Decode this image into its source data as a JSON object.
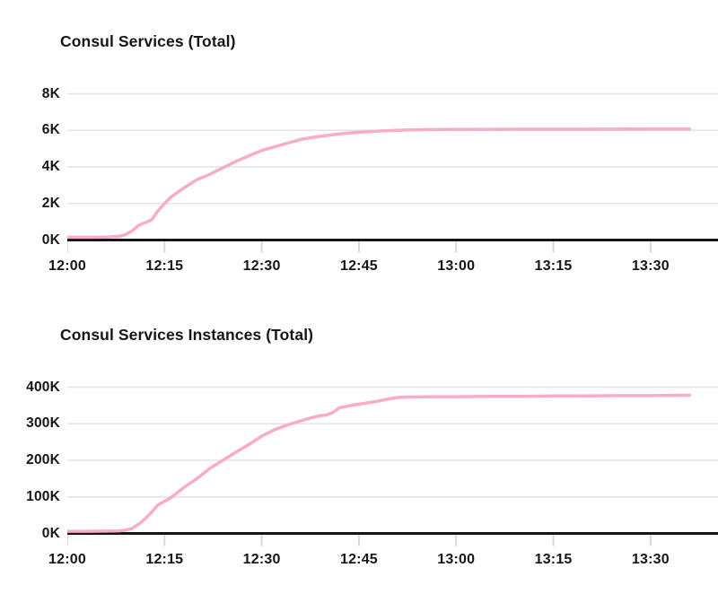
{
  "charts_shared": {
    "accent_color": "#F8ABCB",
    "grid_color": "#E3E3E3",
    "axis_color": "#151515",
    "tick_color": "#D9D9D9",
    "text_color": "#161616",
    "background": "#FFFFFF"
  },
  "chart_data": [
    {
      "type": "line",
      "title": "Consul Services (Total)",
      "x_tick_labels": [
        "12:00",
        "12:15",
        "12:30",
        "12:45",
        "13:00",
        "13:15",
        "13:30"
      ],
      "x_tick_interval_minutes": 15,
      "x_range_minutes": [
        0,
        100.4
      ],
      "y_tick_labels": [
        "8K",
        "6K",
        "4K",
        "2K",
        "0K"
      ],
      "y_tick_values": [
        8000,
        6000,
        4000,
        2000,
        0
      ],
      "y_range": [
        0,
        8000
      ],
      "grid": "horizontal",
      "legend": "none",
      "series": [
        {
          "name": "Consul Services (Total)",
          "color": "#F8ABCB",
          "points_minute_value": [
            [
              0,
              150
            ],
            [
              2,
              150
            ],
            [
              4,
              150
            ],
            [
              6,
              160
            ],
            [
              8,
              200
            ],
            [
              9,
              300
            ],
            [
              10,
              500
            ],
            [
              11,
              800
            ],
            [
              12,
              950
            ],
            [
              13,
              1100
            ],
            [
              14,
              1600
            ],
            [
              15,
              2000
            ],
            [
              16,
              2350
            ],
            [
              18,
              2850
            ],
            [
              20,
              3300
            ],
            [
              22,
              3600
            ],
            [
              24,
              3950
            ],
            [
              26,
              4300
            ],
            [
              28,
              4600
            ],
            [
              30,
              4900
            ],
            [
              32,
              5100
            ],
            [
              34,
              5300
            ],
            [
              36,
              5500
            ],
            [
              38,
              5620
            ],
            [
              40,
              5720
            ],
            [
              42,
              5800
            ],
            [
              44,
              5870
            ],
            [
              46,
              5920
            ],
            [
              48,
              5960
            ],
            [
              50,
              5990
            ],
            [
              53,
              6020
            ],
            [
              56,
              6040
            ],
            [
              60,
              6050
            ],
            [
              65,
              6055
            ],
            [
              70,
              6060
            ],
            [
              75,
              6060
            ],
            [
              80,
              6060
            ],
            [
              85,
              6065
            ],
            [
              90,
              6070
            ],
            [
              96,
              6070
            ]
          ]
        }
      ]
    },
    {
      "type": "line",
      "title": "Consul Services Instances (Total)",
      "x_tick_labels": [
        "12:00",
        "12:15",
        "12:30",
        "12:45",
        "13:00",
        "13:15",
        "13:30"
      ],
      "x_tick_interval_minutes": 15,
      "x_range_minutes": [
        0,
        100.4
      ],
      "y_tick_labels": [
        "400K",
        "300K",
        "200K",
        "100K",
        "0K"
      ],
      "y_tick_values": [
        400000,
        300000,
        200000,
        100000,
        0
      ],
      "y_range": [
        0,
        400000
      ],
      "grid": "horizontal",
      "legend": "none",
      "series": [
        {
          "name": "Consul Services Instances (Total)",
          "color": "#F8ABCB",
          "points_minute_value": [
            [
              0,
              6000
            ],
            [
              3,
              6000
            ],
            [
              6,
              6500
            ],
            [
              8,
              7000
            ],
            [
              9,
              9000
            ],
            [
              10,
              14000
            ],
            [
              11,
              25000
            ],
            [
              12,
              40000
            ],
            [
              13,
              58000
            ],
            [
              14,
              78000
            ],
            [
              15,
              88000
            ],
            [
              16,
              98000
            ],
            [
              17,
              112000
            ],
            [
              18,
              126000
            ],
            [
              20,
              150000
            ],
            [
              22,
              178000
            ],
            [
              24,
              200000
            ],
            [
              26,
              222000
            ],
            [
              28,
              243000
            ],
            [
              30,
              266000
            ],
            [
              32,
              284000
            ],
            [
              34,
              297000
            ],
            [
              36,
              308000
            ],
            [
              38,
              318000
            ],
            [
              39,
              322000
            ],
            [
              40,
              324000
            ],
            [
              41,
              331000
            ],
            [
              42,
              344000
            ],
            [
              43,
              347000
            ],
            [
              44,
              351000
            ],
            [
              46,
              356000
            ],
            [
              48,
              362000
            ],
            [
              49,
              366000
            ],
            [
              50,
              369000
            ],
            [
              51,
              372000
            ],
            [
              53,
              373000
            ],
            [
              56,
              374000
            ],
            [
              60,
              374000
            ],
            [
              65,
              375000
            ],
            [
              70,
              375000
            ],
            [
              75,
              376000
            ],
            [
              80,
              376000
            ],
            [
              85,
              377000
            ],
            [
              90,
              377000
            ],
            [
              96,
              378000
            ]
          ]
        }
      ]
    }
  ]
}
